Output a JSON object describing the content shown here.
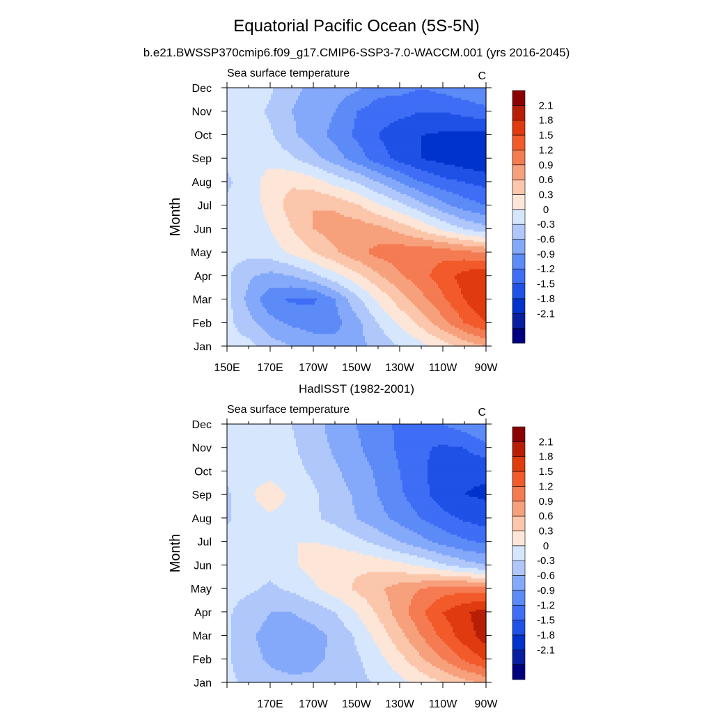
{
  "figure": {
    "title": "Equatorial Pacific Ocean (5S-5N)",
    "subtitle": "b.e21.BWSSP370cmip6.f09_g17.CMIP6-SSP3-7.0-WACCM.001 (yrs 2016-2045)",
    "panel2_title": "HadISST (1982-2001)"
  },
  "colorbar": {
    "colors": [
      "#00007f",
      "#0a1ea0",
      "#0033cc",
      "#1f51e6",
      "#3f6df5",
      "#5c8af7",
      "#85a9fa",
      "#b0c7fb",
      "#d6e6fd",
      "#fde6d8",
      "#fbc6ab",
      "#f7a07c",
      "#f47b52",
      "#f25a2a",
      "#e03a0f",
      "#b81e05",
      "#8b0000"
    ],
    "labels": [
      "2.1",
      "1.8",
      "1.5",
      "1.2",
      "0.9",
      "0.6",
      "0.3",
      "0",
      "-0.3",
      "-0.6",
      "-0.9",
      "-1.2",
      "-1.5",
      "-1.8",
      "-2.1"
    ]
  },
  "chart_data": [
    {
      "type": "heatmap",
      "title": "",
      "left_string": "Sea surface temperature",
      "right_string": "C",
      "ylabel": "Month",
      "xlabel": "",
      "x_tick_labels": [
        "150E",
        "170E",
        "170W",
        "150W",
        "130W",
        "110W",
        "90W"
      ],
      "y_tick_labels": [
        "Jan",
        "Feb",
        "Mar",
        "Apr",
        "May",
        "Jun",
        "Jul",
        "Aug",
        "Sep",
        "Oct",
        "Nov",
        "Dec"
      ],
      "xlim_lon_east": [
        150,
        270
      ],
      "x": [
        150,
        160,
        170,
        180,
        190,
        200,
        210,
        220,
        230,
        240,
        250,
        260,
        270
      ],
      "y": [
        "Jan",
        "Feb",
        "Mar",
        "Apr",
        "May",
        "Jun",
        "Jul",
        "Aug",
        "Sep",
        "Oct",
        "Nov",
        "Dec"
      ],
      "levels": [
        -2.1,
        -1.8,
        -1.5,
        -1.2,
        -0.9,
        -0.6,
        -0.3,
        0,
        0.3,
        0.6,
        0.9,
        1.2,
        1.5,
        1.8,
        2.1
      ],
      "units": "C",
      "z": [
        [
          0.1,
          0.1,
          -0.15,
          -0.3,
          -0.4,
          -0.5,
          -0.4,
          -0.2,
          0.0,
          0.2,
          0.45,
          0.7,
          0.9
        ],
        [
          0.1,
          -0.2,
          -0.5,
          -0.65,
          -0.75,
          -0.7,
          -0.4,
          0.0,
          0.35,
          0.7,
          1.1,
          1.5,
          1.8
        ],
        [
          0.1,
          -0.4,
          -0.8,
          -0.95,
          -0.95,
          -0.6,
          -0.1,
          0.35,
          0.75,
          1.1,
          1.45,
          1.8,
          2.1
        ],
        [
          0.05,
          -0.25,
          -0.4,
          -0.3,
          -0.1,
          0.2,
          0.5,
          0.85,
          1.15,
          1.4,
          1.65,
          1.95,
          2.05
        ],
        [
          0.1,
          0.1,
          0.15,
          0.35,
          0.6,
          0.85,
          1.1,
          1.3,
          1.4,
          1.45,
          1.4,
          1.3,
          1.2
        ],
        [
          0.05,
          0.1,
          0.3,
          0.6,
          0.9,
          1.05,
          1.1,
          1.0,
          0.8,
          0.55,
          0.25,
          0.0,
          -0.2
        ],
        [
          0.05,
          0.15,
          0.4,
          0.75,
          0.9,
          0.85,
          0.65,
          0.35,
          0.1,
          -0.2,
          -0.5,
          -0.75,
          -0.9
        ],
        [
          -0.05,
          0.15,
          0.45,
          0.55,
          0.45,
          0.2,
          0.0,
          -0.3,
          -0.6,
          -0.9,
          -1.1,
          -1.2,
          -1.3
        ],
        [
          0.05,
          0.15,
          0.2,
          0.05,
          -0.2,
          -0.45,
          -0.75,
          -1.05,
          -1.3,
          -1.5,
          -1.6,
          -1.7,
          -1.8
        ],
        [
          0.1,
          0.15,
          0.05,
          -0.25,
          -0.45,
          -0.7,
          -0.95,
          -1.2,
          -1.4,
          -1.5,
          -1.55,
          -1.6,
          -1.6
        ],
        [
          0.1,
          0.15,
          -0.05,
          -0.3,
          -0.4,
          -0.6,
          -0.9,
          -1.05,
          -1.1,
          -1.2,
          -1.2,
          -1.1,
          -1.0
        ],
        [
          0.1,
          0.15,
          0.05,
          -0.25,
          -0.35,
          -0.45,
          -0.55,
          -0.8,
          -0.8,
          -0.9,
          -0.8,
          -0.7,
          -0.6
        ]
      ]
    },
    {
      "type": "heatmap",
      "title": "HadISST (1982-2001)",
      "left_string": "Sea surface temperature",
      "right_string": "C",
      "ylabel": "Month",
      "xlabel": "",
      "x_tick_labels": [
        "",
        "170E",
        "170W",
        "150W",
        "130W",
        "110W",
        "90W"
      ],
      "y_tick_labels": [
        "Jan",
        "Feb",
        "Mar",
        "Apr",
        "May",
        "Jun",
        "Jul",
        "Aug",
        "Sep",
        "Oct",
        "Nov",
        "Dec"
      ],
      "xlim_lon_east": [
        150,
        270
      ],
      "x": [
        150,
        160,
        170,
        180,
        190,
        200,
        210,
        220,
        230,
        240,
        250,
        260,
        270
      ],
      "y": [
        "Jan",
        "Feb",
        "Mar",
        "Apr",
        "May",
        "Jun",
        "Jul",
        "Aug",
        "Sep",
        "Oct",
        "Nov",
        "Dec"
      ],
      "levels": [
        -2.1,
        -1.8,
        -1.5,
        -1.2,
        -0.9,
        -0.6,
        -0.3,
        0,
        0.3,
        0.6,
        0.9,
        1.2,
        1.5,
        1.8,
        2.1
      ],
      "units": "C",
      "z": [
        [
          0.1,
          -0.1,
          -0.2,
          -0.25,
          -0.25,
          -0.2,
          -0.1,
          0.05,
          0.2,
          0.4,
          0.6,
          0.8,
          0.95
        ],
        [
          0.05,
          -0.2,
          -0.35,
          -0.4,
          -0.35,
          -0.25,
          -0.05,
          0.2,
          0.5,
          0.85,
          1.2,
          1.55,
          1.85
        ],
        [
          0.05,
          -0.25,
          -0.4,
          -0.45,
          -0.4,
          -0.25,
          0.05,
          0.4,
          0.8,
          1.2,
          1.6,
          1.95,
          2.25
        ],
        [
          0.05,
          -0.15,
          -0.3,
          -0.3,
          -0.2,
          0.0,
          0.3,
          0.65,
          1.05,
          1.45,
          1.8,
          2.05,
          2.25
        ],
        [
          0.1,
          0.05,
          -0.05,
          0.05,
          0.25,
          0.45,
          0.65,
          0.85,
          1.05,
          1.2,
          1.35,
          1.4,
          1.3
        ],
        [
          0.15,
          0.1,
          0.1,
          0.25,
          0.4,
          0.5,
          0.55,
          0.5,
          0.4,
          0.25,
          0.05,
          -0.15,
          -0.3
        ],
        [
          0.1,
          0.15,
          0.2,
          0.3,
          0.3,
          0.25,
          0.1,
          -0.1,
          -0.3,
          -0.5,
          -0.7,
          -0.85,
          -0.95
        ],
        [
          -0.05,
          0.15,
          0.25,
          0.2,
          0.05,
          -0.1,
          -0.3,
          -0.5,
          -0.7,
          -0.9,
          -1.1,
          -1.25,
          -1.35
        ],
        [
          -0.05,
          0.25,
          0.45,
          0.25,
          0.05,
          -0.15,
          -0.35,
          -0.6,
          -0.85,
          -1.1,
          -1.35,
          -1.5,
          -1.55
        ],
        [
          0.05,
          0.2,
          0.2,
          0.1,
          -0.05,
          -0.25,
          -0.45,
          -0.65,
          -0.9,
          -1.15,
          -1.35,
          -1.45,
          -1.45
        ],
        [
          0.1,
          0.15,
          0.15,
          0.05,
          -0.15,
          -0.35,
          -0.55,
          -0.75,
          -0.95,
          -1.15,
          -1.25,
          -1.2,
          -1.0
        ],
        [
          0.1,
          0.15,
          0.15,
          0.0,
          -0.2,
          -0.4,
          -0.6,
          -0.8,
          -0.95,
          -1.05,
          -0.9,
          -0.75,
          -0.6
        ]
      ]
    }
  ]
}
